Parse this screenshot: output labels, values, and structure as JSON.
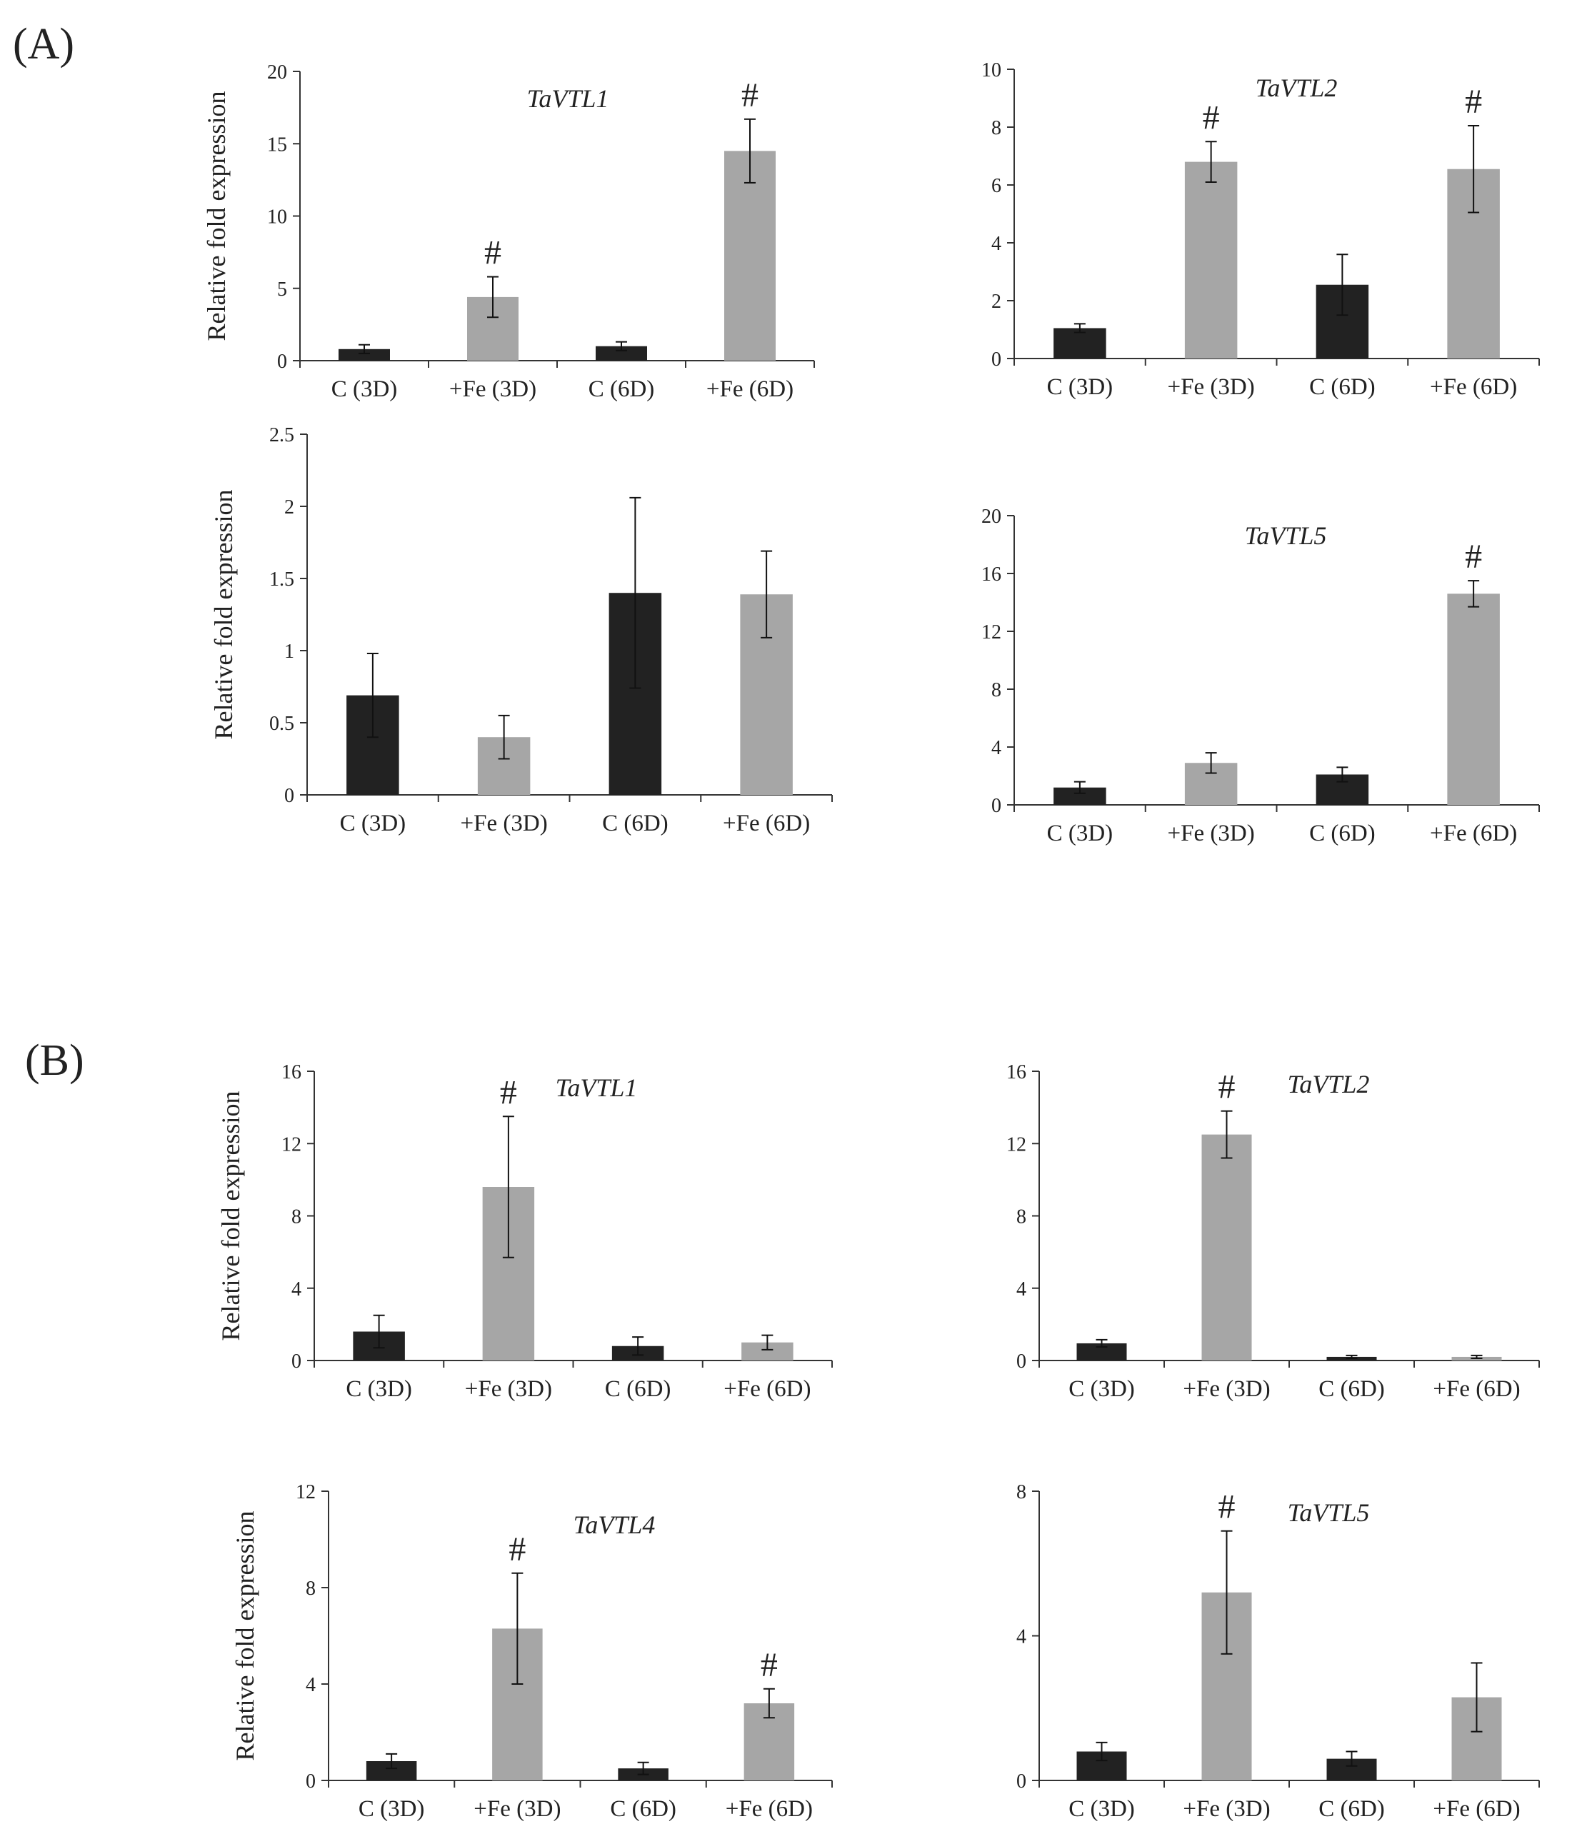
{
  "figure": {
    "panel_labels": [
      "(A)",
      "(B)"
    ]
  },
  "colors": {
    "control": "#222222",
    "fe": "#a6a6a6",
    "axis": "#333333",
    "text": "#222222"
  },
  "chart_data": [
    {
      "id": "A1",
      "panel": "(A)",
      "type": "bar",
      "title": "TaVTL1",
      "ylabel": "Relative fold expression",
      "xlabel": "",
      "ylim": [
        0,
        20
      ],
      "yticks": [
        "0",
        "5",
        "10",
        "15",
        "20"
      ],
      "categories": [
        "C (3D)",
        "+Fe (3D)",
        "C (6D)",
        "+Fe (6D)"
      ],
      "values": [
        0.8,
        4.4,
        1.0,
        14.5
      ],
      "errors": [
        0.3,
        1.4,
        0.3,
        2.2
      ],
      "significance": [
        "",
        "#",
        "",
        "#"
      ]
    },
    {
      "id": "A2",
      "panel": "(A)",
      "type": "bar",
      "title": "TaVTL2",
      "ylabel": "",
      "xlabel": "",
      "ylim": [
        0,
        10
      ],
      "yticks": [
        "0",
        "2",
        "4",
        "6",
        "8",
        "10"
      ],
      "categories": [
        "C (3D)",
        "+Fe (3D)",
        "C (6D)",
        "+Fe (6D)"
      ],
      "values": [
        1.05,
        6.8,
        2.55,
        6.55
      ],
      "errors": [
        0.15,
        0.7,
        1.05,
        1.5
      ],
      "significance": [
        "",
        "#",
        "",
        "#"
      ]
    },
    {
      "id": "A3",
      "panel": "(A)",
      "type": "bar",
      "title": "",
      "ylabel": "Relative fold expression",
      "xlabel": "",
      "ylim": [
        0,
        2.5
      ],
      "yticks": [
        "0",
        "0.5",
        "1",
        "1.5",
        "2",
        "2.5"
      ],
      "categories": [
        "C (3D)",
        "+Fe (3D)",
        "C (6D)",
        "+Fe (6D)"
      ],
      "values": [
        0.69,
        0.4,
        1.4,
        1.39
      ],
      "errors": [
        0.29,
        0.15,
        0.66,
        0.3
      ],
      "significance": [
        "",
        "",
        "",
        ""
      ]
    },
    {
      "id": "A4",
      "panel": "(A)",
      "type": "bar",
      "title": "TaVTL5",
      "ylabel": "",
      "xlabel": "",
      "ylim": [
        0,
        20
      ],
      "yticks": [
        "0",
        "4",
        "8",
        "12",
        "16",
        "20"
      ],
      "categories": [
        "C (3D)",
        "+Fe (3D)",
        "C (6D)",
        "+Fe (6D)"
      ],
      "values": [
        1.2,
        2.9,
        2.1,
        14.6
      ],
      "errors": [
        0.4,
        0.7,
        0.5,
        0.9
      ],
      "significance": [
        "",
        "",
        "",
        "#"
      ]
    },
    {
      "id": "B1",
      "panel": "(B)",
      "type": "bar",
      "title": "TaVTL1",
      "ylabel": "Relative fold expression",
      "xlabel": "",
      "ylim": [
        0,
        16
      ],
      "yticks": [
        "0",
        "4",
        "8",
        "12",
        "16"
      ],
      "categories": [
        "C (3D)",
        "+Fe (3D)",
        "C (6D)",
        "+Fe (6D)"
      ],
      "values": [
        1.6,
        9.6,
        0.8,
        1.0
      ],
      "errors": [
        0.9,
        3.9,
        0.5,
        0.4
      ],
      "significance": [
        "",
        "#",
        "",
        ""
      ]
    },
    {
      "id": "B2",
      "panel": "(B)",
      "type": "bar",
      "title": "TaVTL2",
      "ylabel": "",
      "xlabel": "",
      "ylim": [
        0,
        16
      ],
      "yticks": [
        "0",
        "4",
        "8",
        "12",
        "16"
      ],
      "categories": [
        "C (3D)",
        "+Fe (3D)",
        "C (6D)",
        "+Fe (6D)"
      ],
      "values": [
        0.95,
        12.5,
        0.2,
        0.2
      ],
      "errors": [
        0.2,
        1.3,
        0.08,
        0.08
      ],
      "significance": [
        "",
        "#",
        "",
        ""
      ]
    },
    {
      "id": "B3",
      "panel": "(B)",
      "type": "bar",
      "title": "TaVTL4",
      "ylabel": "Relative fold expression",
      "xlabel": "",
      "ylim": [
        0,
        12
      ],
      "yticks": [
        "0",
        "4",
        "8",
        "12"
      ],
      "categories": [
        "C (3D)",
        "+Fe (3D)",
        "C (6D)",
        "+Fe (6D)"
      ],
      "values": [
        0.8,
        6.3,
        0.5,
        3.2
      ],
      "errors": [
        0.3,
        2.3,
        0.25,
        0.6
      ],
      "significance": [
        "",
        "#",
        "",
        "#"
      ]
    },
    {
      "id": "B4",
      "panel": "(B)",
      "type": "bar",
      "title": "TaVTL5",
      "ylabel": "",
      "xlabel": "",
      "ylim": [
        0,
        8
      ],
      "yticks": [
        "0",
        "4",
        "8"
      ],
      "categories": [
        "C (3D)",
        "+Fe (3D)",
        "C (6D)",
        "+Fe (6D)"
      ],
      "values": [
        0.8,
        5.2,
        0.6,
        2.3
      ],
      "errors": [
        0.25,
        1.7,
        0.2,
        0.95
      ],
      "significance": [
        "",
        "#",
        "",
        ""
      ]
    }
  ]
}
